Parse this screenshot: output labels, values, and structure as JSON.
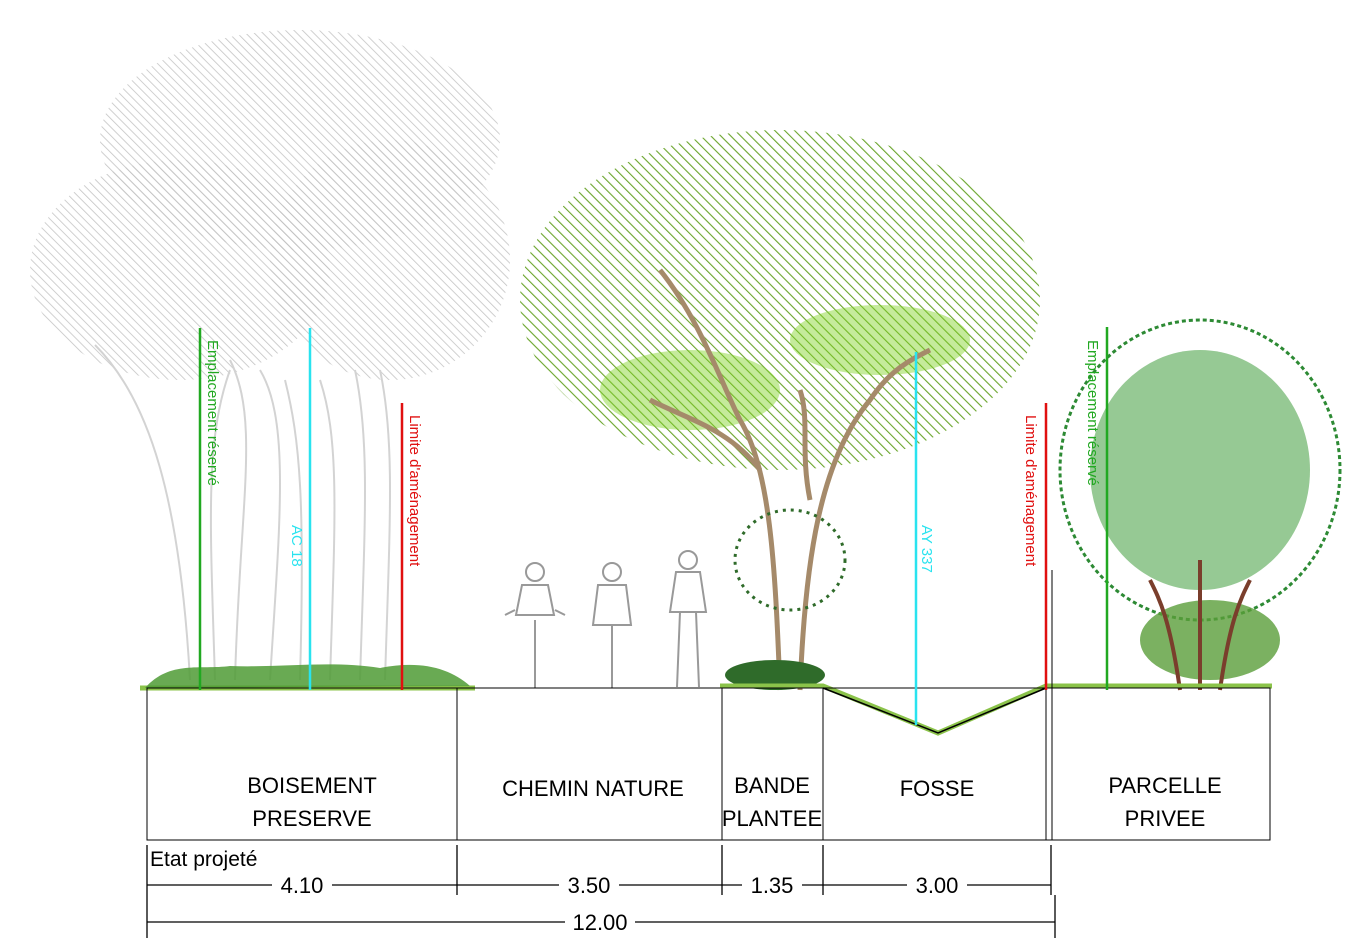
{
  "state_label": "Etat projeté",
  "zones": [
    {
      "lines": [
        "BOISEMENT",
        "PRESERVE"
      ]
    },
    {
      "lines": [
        "CHEMIN NATURE"
      ]
    },
    {
      "lines": [
        "BANDE",
        "PLANTEE"
      ]
    },
    {
      "lines": [
        "FOSSE"
      ]
    },
    {
      "lines": [
        "PARCELLE",
        "PRIVEE"
      ]
    }
  ],
  "vertical_labels": [
    "Emplacement réservé",
    "AC 18",
    "Limite d'aménagement",
    "AY 337",
    "Limite d'aménagement",
    "Emplacement réservé"
  ],
  "dimensions": [
    "4.10",
    "3.50",
    "1.35",
    "3.00"
  ],
  "total_dimension": "12.00"
}
